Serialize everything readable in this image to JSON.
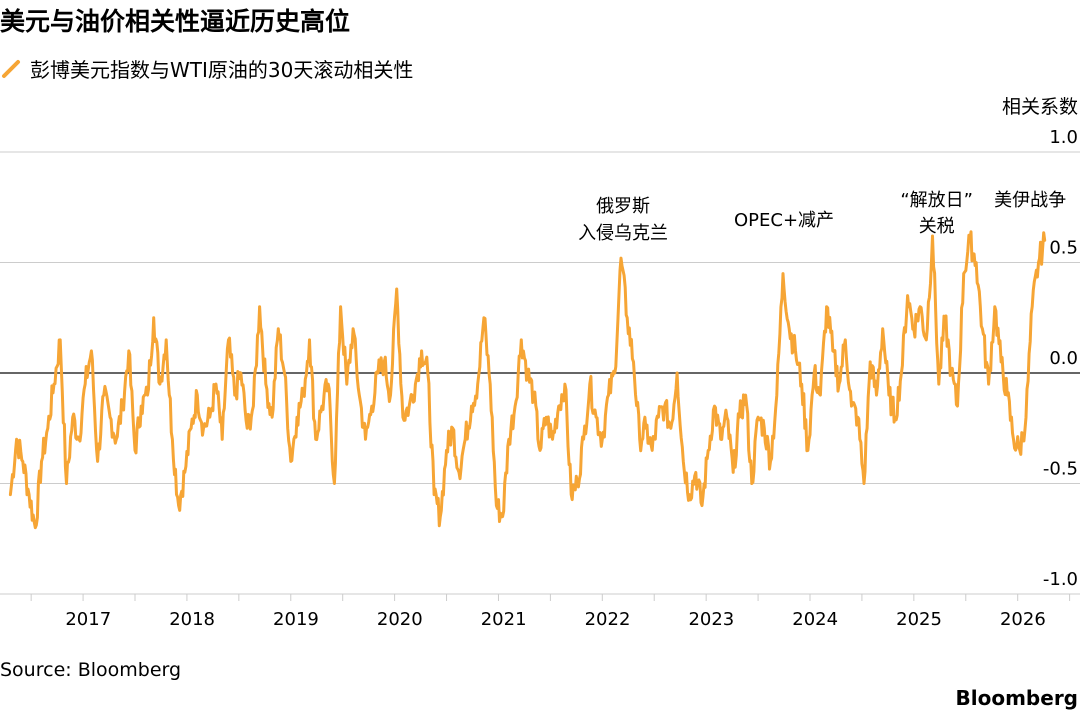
{
  "header": {
    "title": "美元与油价相关性逼近历史高位"
  },
  "source": "Source: Bloomberg",
  "brand": "Bloomberg",
  "colors": {
    "series": "#f6a535",
    "grid": "#cccccc",
    "zero": "#333333",
    "text": "#000000"
  },
  "chart_data": {
    "type": "line",
    "title": "美元与油价相关性逼近历史高位",
    "ylabel": "相关系数",
    "ylim": [
      -1.0,
      1.0
    ],
    "yticks": [
      1.0,
      0.5,
      0.0,
      -0.5,
      -1.0
    ],
    "ytick_labels": [
      "1.0",
      "0.5",
      "0.0",
      "-0.5",
      "-1.0"
    ],
    "xlim": [
      2016.2,
      2026.6
    ],
    "xticks": [
      2017,
      2018,
      2019,
      2020,
      2021,
      2022,
      2023,
      2024,
      2025,
      2026
    ],
    "xtick_labels": [
      "2017",
      "2018",
      "2019",
      "2020",
      "2021",
      "2022",
      "2023",
      "2024",
      "2025",
      "2026"
    ],
    "grid": true,
    "legend_position": "top-left",
    "series": [
      {
        "name": "彭博美元指数与WTI原油的30天滚动相关性",
        "x": [
          2016.3,
          2016.36,
          2016.42,
          2016.48,
          2016.54,
          2016.6,
          2016.66,
          2016.72,
          2016.78,
          2016.84,
          2016.9,
          2016.96,
          2017.02,
          2017.08,
          2017.14,
          2017.2,
          2017.26,
          2017.32,
          2017.38,
          2017.44,
          2017.5,
          2017.56,
          2017.62,
          2017.68,
          2017.74,
          2017.8,
          2017.86,
          2017.92,
          2017.98,
          2018.04,
          2018.1,
          2018.16,
          2018.22,
          2018.28,
          2018.34,
          2018.4,
          2018.46,
          2018.52,
          2018.58,
          2018.64,
          2018.7,
          2018.76,
          2018.82,
          2018.88,
          2018.94,
          2019.0,
          2019.06,
          2019.12,
          2019.18,
          2019.24,
          2019.3,
          2019.36,
          2019.42,
          2019.48,
          2019.54,
          2019.6,
          2019.66,
          2019.72,
          2019.78,
          2019.84,
          2019.9,
          2019.96,
          2020.02,
          2020.08,
          2020.14,
          2020.2,
          2020.26,
          2020.32,
          2020.38,
          2020.44,
          2020.5,
          2020.56,
          2020.62,
          2020.68,
          2020.74,
          2020.8,
          2020.86,
          2020.92,
          2020.98,
          2021.04,
          2021.1,
          2021.16,
          2021.22,
          2021.28,
          2021.34,
          2021.4,
          2021.46,
          2021.52,
          2021.58,
          2021.64,
          2021.7,
          2021.76,
          2021.82,
          2021.88,
          2021.94,
          2022.0,
          2022.06,
          2022.12,
          2022.18,
          2022.24,
          2022.3,
          2022.36,
          2022.42,
          2022.48,
          2022.54,
          2022.6,
          2022.66,
          2022.72,
          2022.78,
          2022.84,
          2022.9,
          2022.96,
          2023.02,
          2023.08,
          2023.14,
          2023.2,
          2023.26,
          2023.32,
          2023.38,
          2023.44,
          2023.5,
          2023.56,
          2023.62,
          2023.68,
          2023.74,
          2023.8,
          2023.86,
          2023.92,
          2023.98,
          2024.04,
          2024.1,
          2024.16,
          2024.22,
          2024.28,
          2024.34,
          2024.4,
          2024.46,
          2024.52,
          2024.58,
          2024.64,
          2024.7,
          2024.76,
          2024.82,
          2024.88,
          2024.94,
          2025.0,
          2025.06,
          2025.12,
          2025.18,
          2025.24,
          2025.3,
          2025.36,
          2025.42,
          2025.48,
          2025.54,
          2025.6,
          2025.66,
          2025.72,
          2025.78,
          2025.84,
          2025.9,
          2025.96,
          2026.02,
          2026.08,
          2026.14,
          2026.2,
          2026.26
        ],
        "values": [
          -0.55,
          -0.3,
          -0.4,
          -0.55,
          -0.7,
          -0.4,
          -0.25,
          -0.05,
          0.15,
          -0.5,
          -0.2,
          -0.3,
          -0.05,
          0.1,
          -0.4,
          -0.1,
          -0.2,
          -0.3,
          -0.15,
          0.1,
          -0.35,
          -0.15,
          -0.1,
          0.25,
          -0.05,
          0.15,
          -0.3,
          -0.6,
          -0.45,
          -0.25,
          -0.1,
          -0.25,
          -0.2,
          -0.05,
          -0.3,
          0.15,
          -0.1,
          0.0,
          -0.25,
          -0.15,
          0.3,
          -0.05,
          -0.2,
          0.2,
          0.0,
          -0.4,
          -0.2,
          -0.1,
          0.15,
          -0.3,
          -0.15,
          -0.05,
          -0.5,
          0.3,
          -0.05,
          0.2,
          -0.1,
          -0.3,
          -0.15,
          0.0,
          0.05,
          -0.1,
          0.38,
          -0.2,
          -0.15,
          -0.05,
          0.1,
          0.0,
          -0.55,
          -0.65,
          -0.35,
          -0.25,
          -0.45,
          -0.3,
          -0.15,
          -0.05,
          0.25,
          -0.05,
          -0.6,
          -0.65,
          -0.3,
          -0.15,
          0.15,
          0.0,
          -0.1,
          -0.35,
          -0.2,
          -0.3,
          -0.15,
          -0.05,
          -0.55,
          -0.5,
          -0.3,
          -0.05,
          -0.2,
          -0.3,
          -0.1,
          0.0,
          0.52,
          0.25,
          0.05,
          -0.3,
          -0.25,
          -0.35,
          -0.2,
          -0.15,
          -0.25,
          0.0,
          -0.4,
          -0.55,
          -0.45,
          -0.6,
          -0.35,
          -0.15,
          -0.3,
          -0.2,
          -0.45,
          -0.2,
          -0.1,
          -0.5,
          -0.2,
          -0.25,
          -0.4,
          -0.1,
          0.45,
          0.2,
          0.1,
          -0.05,
          -0.35,
          0.0,
          -0.1,
          0.3,
          0.1,
          -0.05,
          0.15,
          -0.15,
          -0.2,
          -0.5,
          0.05,
          -0.1,
          0.2,
          -0.1,
          -0.2,
          0.0,
          0.35,
          0.2,
          0.3,
          0.15,
          0.62,
          -0.05,
          0.25,
          0.0,
          -0.15,
          0.45,
          0.6,
          0.5,
          0.2,
          -0.05,
          0.3,
          0.05,
          -0.1,
          -0.3,
          -0.35,
          -0.2,
          0.3,
          0.5,
          0.6
        ]
      }
    ],
    "annotations": [
      {
        "x": 2022.2,
        "lines": [
          "俄罗斯",
          "入侵乌克兰"
        ]
      },
      {
        "x": 2023.75,
        "lines": [
          "OPEC+减产"
        ]
      },
      {
        "x": 2025.22,
        "lines": [
          "“解放日”",
          "关税"
        ]
      },
      {
        "x": 2026.12,
        "lines": [
          "美伊战争"
        ]
      }
    ]
  }
}
